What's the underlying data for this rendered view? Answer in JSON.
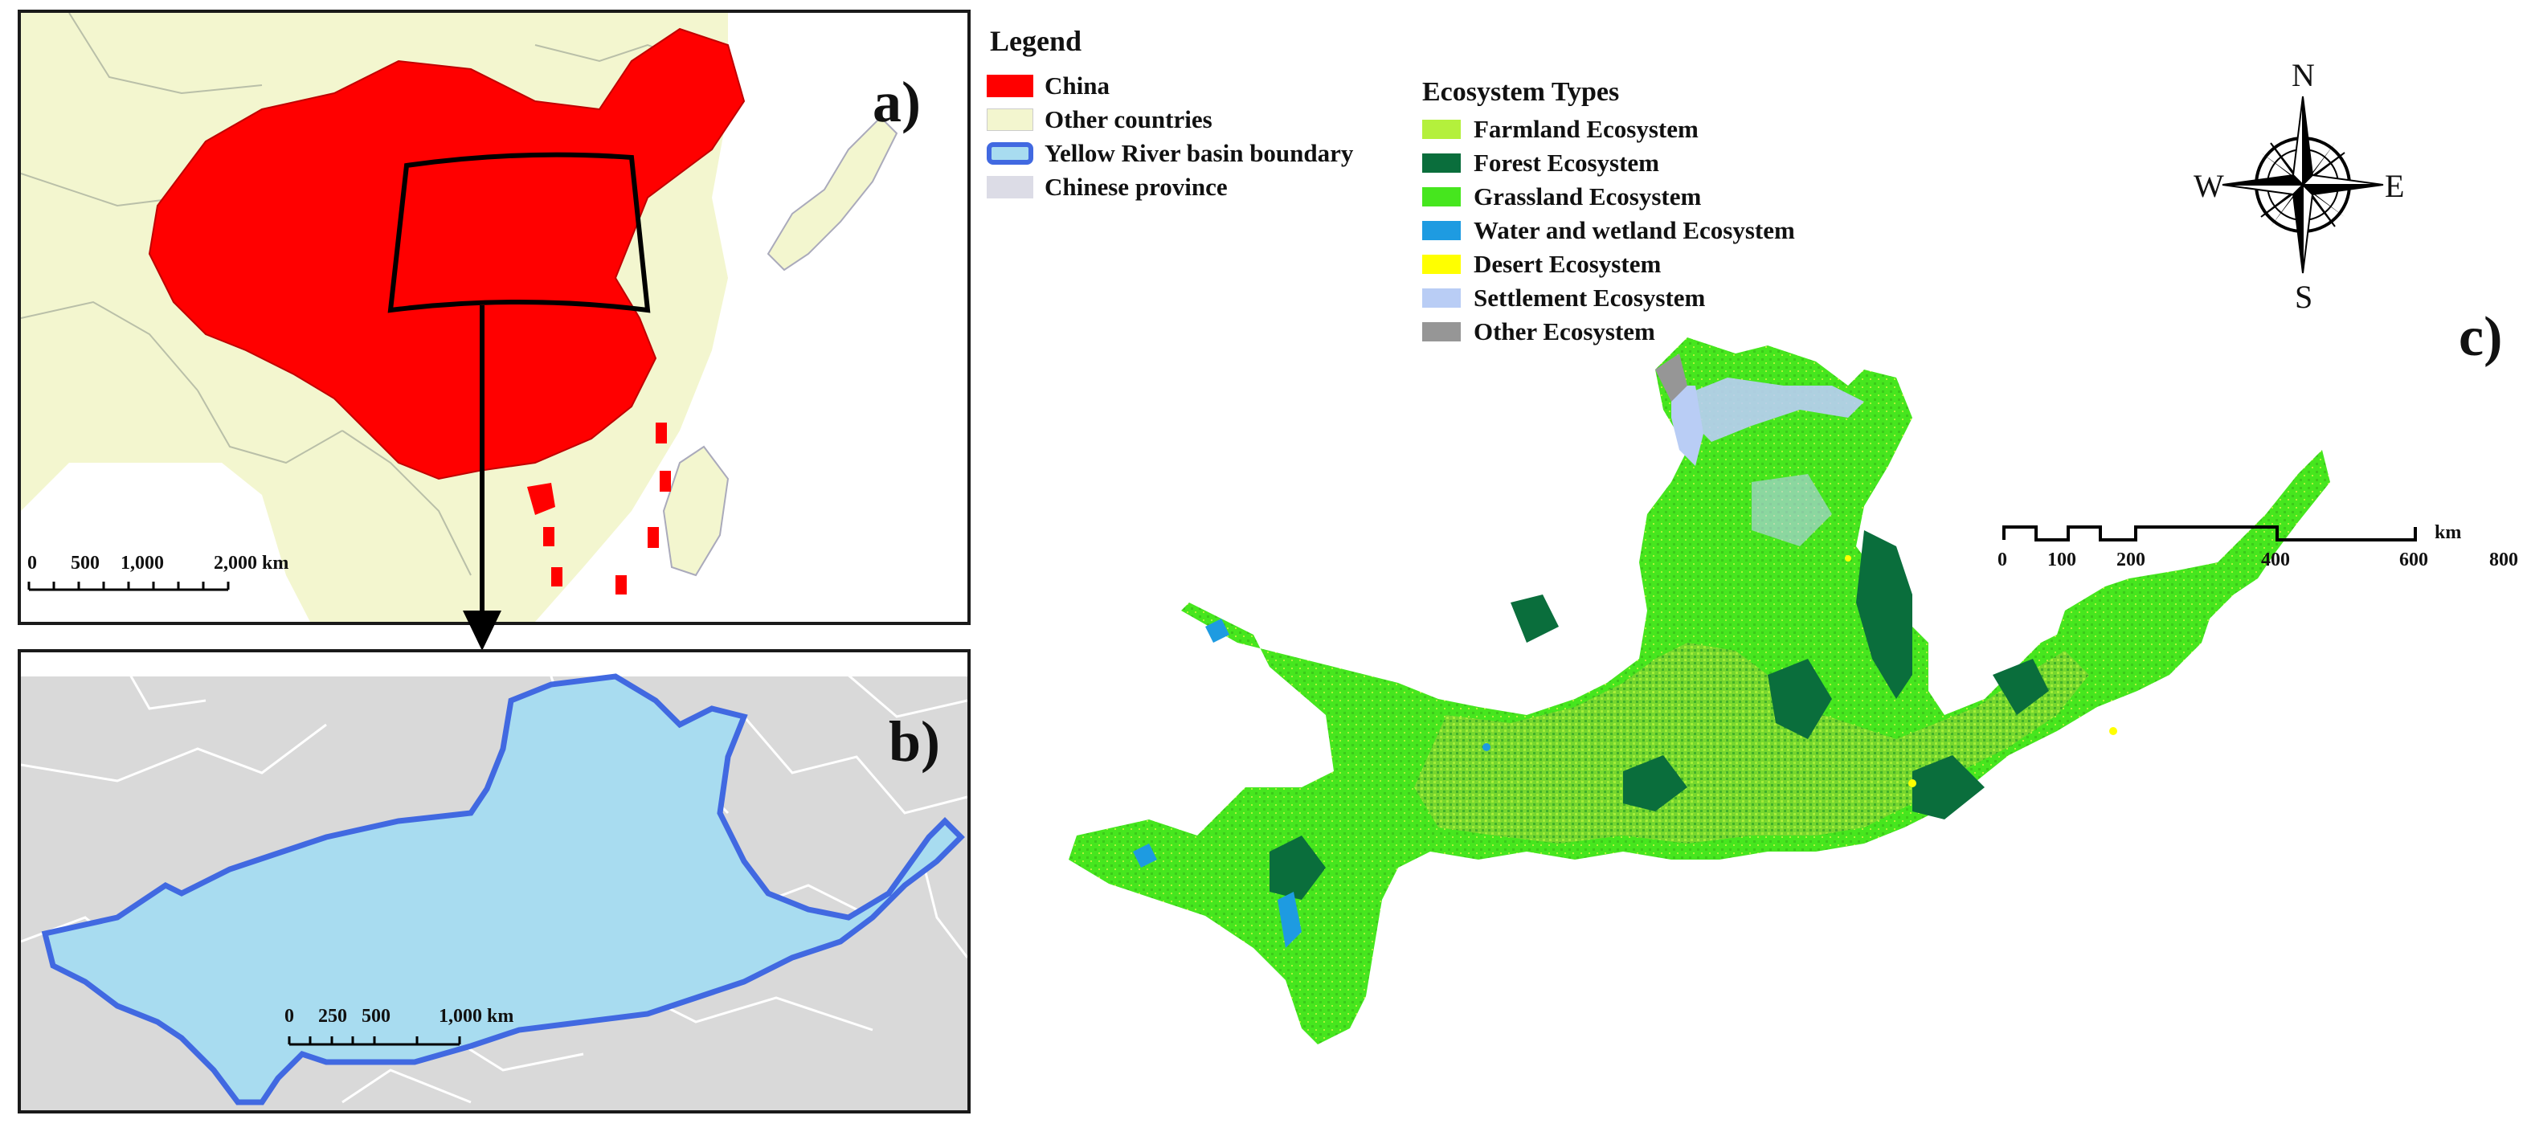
{
  "panels": {
    "a": {
      "label": "a)",
      "scale": {
        "ticks": [
          "0",
          "500",
          "1,000",
          "2,000 km"
        ]
      }
    },
    "b": {
      "label": "b)",
      "scale": {
        "ticks": [
          "0",
          "250",
          "500",
          "1,000 km"
        ]
      }
    },
    "c": {
      "label": "c)",
      "scale": {
        "unit": "km",
        "ticks": [
          "0",
          "100",
          "200",
          "400",
          "600",
          "800"
        ]
      }
    }
  },
  "legend": {
    "title": "Legend",
    "items": [
      {
        "label": "China",
        "color": "#ff0000",
        "style": "fill"
      },
      {
        "label": "Other countries",
        "color": "#f3f6cf",
        "style": "fill"
      },
      {
        "label": "Yellow River basin boundary",
        "color": "#4169e1",
        "style": "outline"
      },
      {
        "label": "Chinese province",
        "color": "#dcdce6",
        "style": "fill"
      }
    ]
  },
  "ecosystem_legend": {
    "title": "Ecosystem Types",
    "items": [
      {
        "label": "Farmland Ecosystem",
        "color": "#b4f03c"
      },
      {
        "label": "Forest Ecosystem",
        "color": "#0a6e3c"
      },
      {
        "label": "Grassland Ecosystem",
        "color": "#46e61e"
      },
      {
        "label": "Water and wetland Ecosystem",
        "color": "#1e9be1"
      },
      {
        "label": "Desert Ecosystem",
        "color": "#ffff00"
      },
      {
        "label": "Settlement Ecosystem",
        "color": "#b9cdf5"
      },
      {
        "label": "Other Ecosystem",
        "color": "#969696"
      }
    ]
  },
  "compass": {
    "n": "N",
    "s": "S",
    "e": "E",
    "w": "W"
  },
  "colors": {
    "china": "#ff0000",
    "other_countries": "#f3f6cf",
    "sea": "#ffffff",
    "basin_fill": "#a8dcf0",
    "basin_outline": "#4169e1",
    "province_bg": "#d9d9d9"
  }
}
